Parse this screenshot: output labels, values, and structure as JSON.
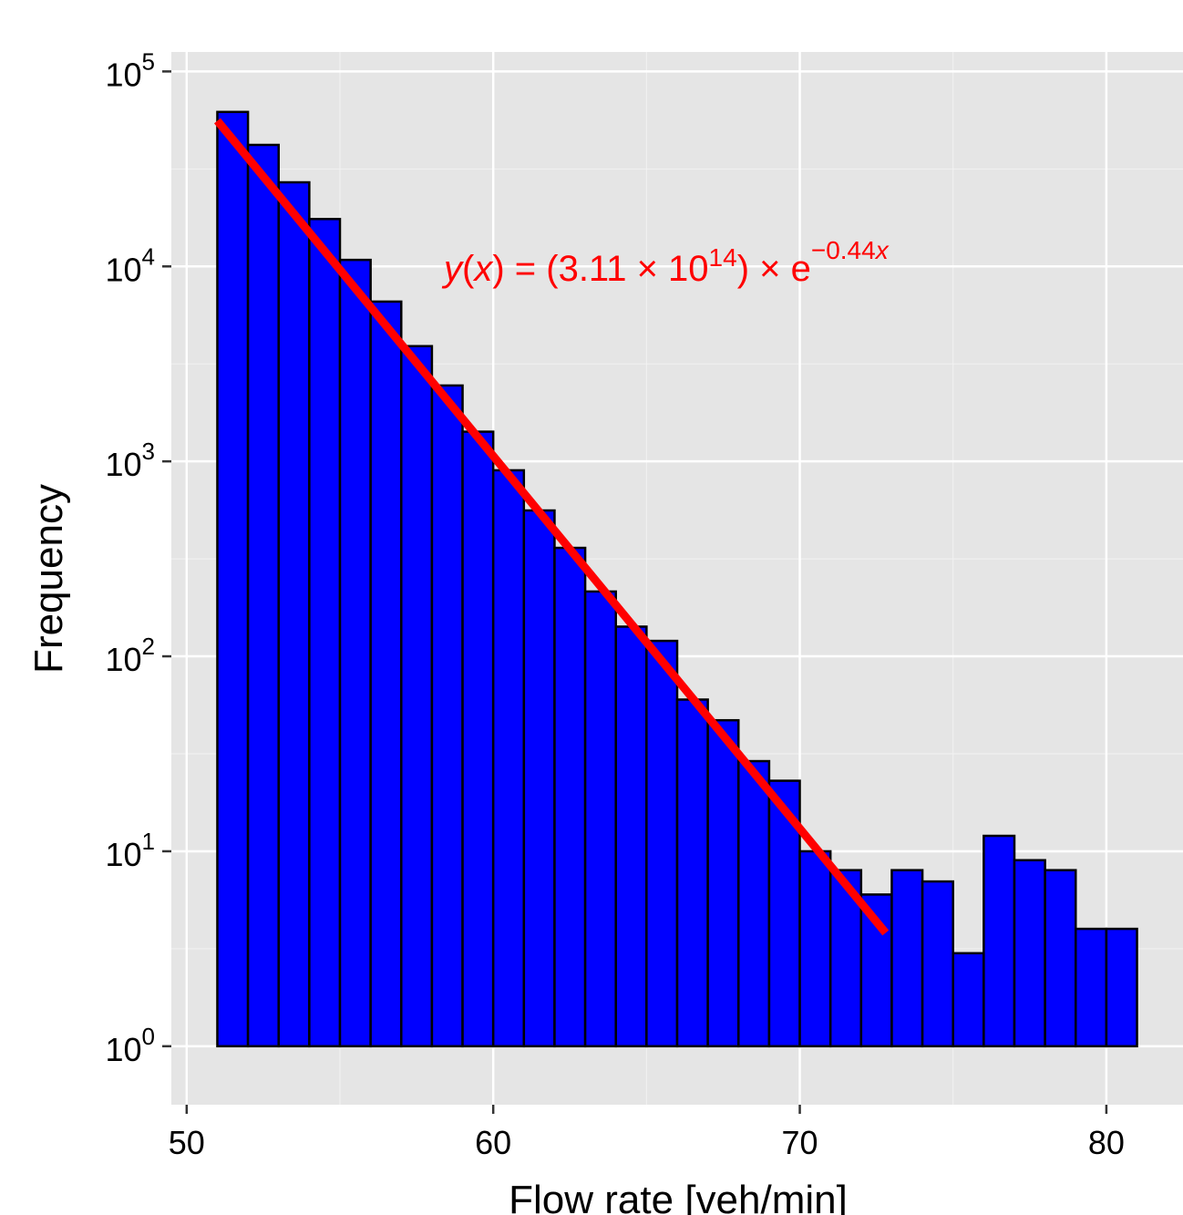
{
  "chart_data": {
    "type": "bar",
    "subtype": "histogram",
    "xlabel": "Flow rate [veh/min]",
    "ylabel": "Frequency",
    "xlim": [
      49.5,
      82.5
    ],
    "ylim_log10": [
      -0.3,
      5.1
    ],
    "y_scale": "log10",
    "bin_width": 1,
    "x_ticks": [
      "50",
      "60",
      "70",
      "80"
    ],
    "y_ticks": [
      {
        "base": "10",
        "exp": "0"
      },
      {
        "base": "10",
        "exp": "1"
      },
      {
        "base": "10",
        "exp": "2"
      },
      {
        "base": "10",
        "exp": "3"
      },
      {
        "base": "10",
        "exp": "4"
      },
      {
        "base": "10",
        "exp": "5"
      }
    ],
    "bins_start": [
      51,
      52,
      53,
      54,
      55,
      56,
      57,
      58,
      59,
      60,
      61,
      62,
      63,
      64,
      65,
      66,
      67,
      68,
      69,
      70,
      71,
      72,
      73,
      74,
      75,
      76,
      77,
      78,
      79,
      80
    ],
    "values": [
      62000,
      42000,
      27000,
      17500,
      10800,
      6600,
      3900,
      2450,
      1420,
      900,
      560,
      360,
      215,
      142,
      120,
      60,
      47,
      29,
      23,
      10,
      8,
      6,
      8,
      7,
      3,
      12,
      9,
      8,
      4,
      4
    ],
    "bar_color": "#0000ff",
    "panel_color": "#e5e5e5",
    "fit": {
      "color": "#ff0000",
      "a": 311000000000000.0,
      "b": -0.44,
      "x_range": [
        51,
        72.8
      ]
    },
    "equation": {
      "y": "y",
      "x1": "x",
      "eq": " = ",
      "coef": "(3.11 × 10",
      "coef_exp": "14",
      "close": ") × e",
      "exp": "−0.44",
      "exp_x": "x"
    }
  }
}
